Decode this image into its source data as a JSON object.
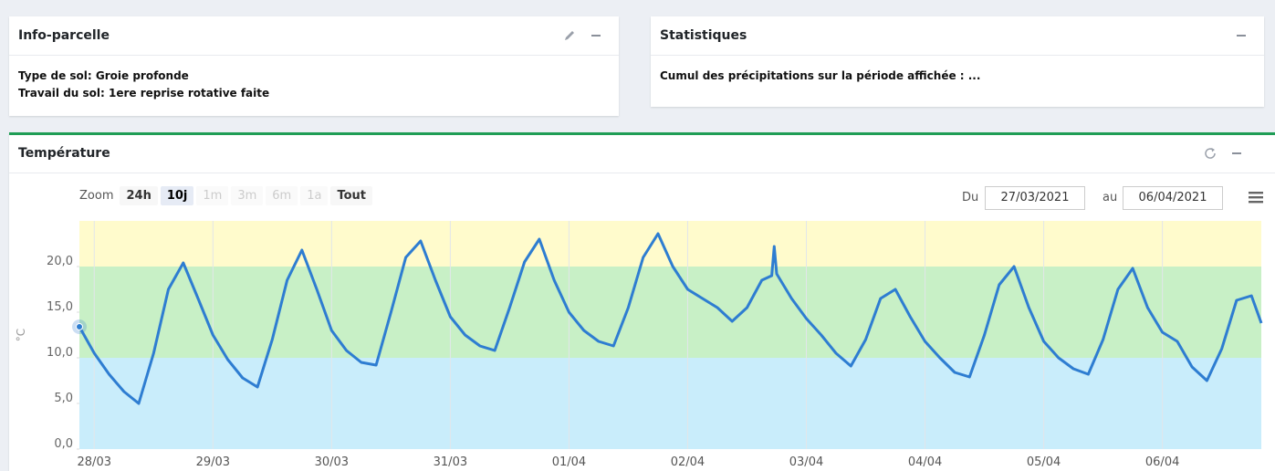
{
  "info_panel": {
    "title": "Info-parcelle",
    "lines": [
      "Type de sol: Groie profonde",
      "Travail du sol: 1ere reprise rotative faite"
    ]
  },
  "stats_panel": {
    "title": "Statistiques",
    "lines": [
      "Cumul des précipitations sur la période affichée : ..."
    ]
  },
  "temperature_panel": {
    "title": "Température",
    "zoom": {
      "label": "Zoom",
      "buttons": [
        {
          "label": "24h",
          "state": "normal"
        },
        {
          "label": "10j",
          "state": "active"
        },
        {
          "label": "1m",
          "state": "disabled"
        },
        {
          "label": "3m",
          "state": "disabled"
        },
        {
          "label": "6m",
          "state": "disabled"
        },
        {
          "label": "1a",
          "state": "disabled"
        },
        {
          "label": "Tout",
          "state": "normal"
        }
      ]
    },
    "date_range": {
      "from_label": "Du",
      "from": "27/03/2021",
      "to_label": "au",
      "to": "06/04/2021"
    }
  },
  "chart_data": {
    "type": "line",
    "y_axis_title": "°C",
    "color": "#2e7dd1",
    "grid": true,
    "ylim": [
      0,
      25
    ],
    "yticks": [
      {
        "value": 0,
        "label": "0,0"
      },
      {
        "value": 5,
        "label": "5,0"
      },
      {
        "value": 10,
        "label": "10,0"
      },
      {
        "value": 15,
        "label": "15,0"
      },
      {
        "value": 20,
        "label": "20,0"
      }
    ],
    "plot_bands": [
      {
        "from": 0,
        "to": 10,
        "color": "#c9edfb"
      },
      {
        "from": 10,
        "to": 20,
        "color": "#c8f0c6"
      },
      {
        "from": 20,
        "to": 25,
        "color": "#fffbcc"
      }
    ],
    "xlim": [
      "2021-03-27T21:00",
      "2021-04-06T20:00"
    ],
    "xticks": [
      {
        "value": "2021-03-28T00:00",
        "label": "28/03"
      },
      {
        "value": "2021-03-29T00:00",
        "label": "29/03"
      },
      {
        "value": "2021-03-30T00:00",
        "label": "30/03"
      },
      {
        "value": "2021-03-31T00:00",
        "label": "31/03"
      },
      {
        "value": "2021-04-01T00:00",
        "label": "01/04"
      },
      {
        "value": "2021-04-02T00:00",
        "label": "02/04"
      },
      {
        "value": "2021-04-03T00:00",
        "label": "03/04"
      },
      {
        "value": "2021-04-04T00:00",
        "label": "04/04"
      },
      {
        "value": "2021-04-05T00:00",
        "label": "05/04"
      },
      {
        "value": "2021-04-06T00:00",
        "label": "06/04"
      }
    ],
    "x": [
      "2021-03-27T21:00",
      "2021-03-28T00:00",
      "2021-03-28T03:00",
      "2021-03-28T06:00",
      "2021-03-28T09:00",
      "2021-03-28T12:00",
      "2021-03-28T15:00",
      "2021-03-28T18:00",
      "2021-03-28T21:00",
      "2021-03-29T00:00",
      "2021-03-29T03:00",
      "2021-03-29T06:00",
      "2021-03-29T09:00",
      "2021-03-29T12:00",
      "2021-03-29T15:00",
      "2021-03-29T18:00",
      "2021-03-29T21:00",
      "2021-03-30T00:00",
      "2021-03-30T03:00",
      "2021-03-30T06:00",
      "2021-03-30T09:00",
      "2021-03-30T12:00",
      "2021-03-30T15:00",
      "2021-03-30T18:00",
      "2021-03-30T21:00",
      "2021-03-31T00:00",
      "2021-03-31T03:00",
      "2021-03-31T06:00",
      "2021-03-31T09:00",
      "2021-03-31T12:00",
      "2021-03-31T15:00",
      "2021-03-31T18:00",
      "2021-03-31T21:00",
      "2021-04-01T00:00",
      "2021-04-01T03:00",
      "2021-04-01T06:00",
      "2021-04-01T09:00",
      "2021-04-01T12:00",
      "2021-04-01T15:00",
      "2021-04-01T18:00",
      "2021-04-01T21:00",
      "2021-04-02T00:00",
      "2021-04-02T03:00",
      "2021-04-02T06:00",
      "2021-04-02T09:00",
      "2021-04-02T12:00",
      "2021-04-02T15:00",
      "2021-04-02T17:00",
      "2021-04-02T17:30",
      "2021-04-02T18:00",
      "2021-04-02T21:00",
      "2021-04-03T00:00",
      "2021-04-03T03:00",
      "2021-04-03T06:00",
      "2021-04-03T09:00",
      "2021-04-03T12:00",
      "2021-04-03T15:00",
      "2021-04-03T18:00",
      "2021-04-03T21:00",
      "2021-04-04T00:00",
      "2021-04-04T03:00",
      "2021-04-04T06:00",
      "2021-04-04T09:00",
      "2021-04-04T12:00",
      "2021-04-04T15:00",
      "2021-04-04T18:00",
      "2021-04-04T21:00",
      "2021-04-05T00:00",
      "2021-04-05T03:00",
      "2021-04-05T06:00",
      "2021-04-05T09:00",
      "2021-04-05T12:00",
      "2021-04-05T15:00",
      "2021-04-05T18:00",
      "2021-04-05T21:00",
      "2021-04-06T00:00",
      "2021-04-06T03:00",
      "2021-04-06T06:00",
      "2021-04-06T09:00",
      "2021-04-06T12:00",
      "2021-04-06T15:00",
      "2021-04-06T18:00",
      "2021-04-06T20:00"
    ],
    "values": [
      13.4,
      10.5,
      8.2,
      6.3,
      5.0,
      10.5,
      17.5,
      20.4,
      16.5,
      12.5,
      9.8,
      7.8,
      6.8,
      12.0,
      18.5,
      21.8,
      17.5,
      13.0,
      10.8,
      9.5,
      9.2,
      15.0,
      21.0,
      22.8,
      18.5,
      14.5,
      12.5,
      11.3,
      10.8,
      15.5,
      20.5,
      23.0,
      18.5,
      15.0,
      13.0,
      11.8,
      11.3,
      15.5,
      21.0,
      23.6,
      20.0,
      17.5,
      16.5,
      15.5,
      14.0,
      15.5,
      18.5,
      19.0,
      22.2,
      19.2,
      16.5,
      14.3,
      12.5,
      10.5,
      9.1,
      12.0,
      16.5,
      17.5,
      14.5,
      11.8,
      10.0,
      8.4,
      7.9,
      12.5,
      18.0,
      20.0,
      15.5,
      11.8,
      10.0,
      8.8,
      8.2,
      12.0,
      17.5,
      19.8,
      15.5,
      12.8,
      11.8,
      9.0,
      7.5,
      11.0,
      16.3,
      16.8,
      13.8
    ]
  }
}
